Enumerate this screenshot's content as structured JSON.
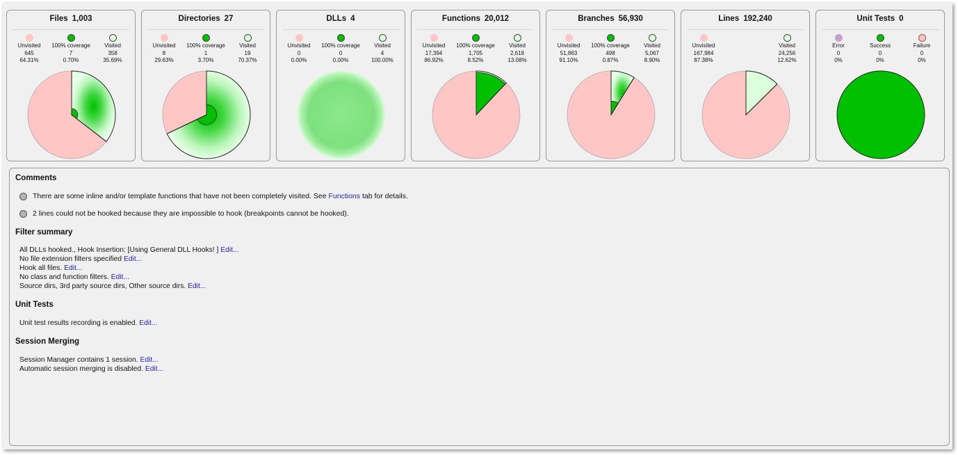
{
  "colors": {
    "unvisited": "#ffc6c6",
    "full": "#00c000",
    "visited": "#dcffdc",
    "error": "#c8a0d0",
    "link": "#2020c8"
  },
  "cards": [
    {
      "title": "Files",
      "count": "1,003",
      "legend": [
        {
          "label": "Unvisited",
          "count": "645",
          "pct": "64.31%",
          "color": "#ffc6c6"
        },
        {
          "label": "100% coverage",
          "count": "7",
          "pct": "0.70%",
          "color": "#00c000"
        },
        {
          "label": "Visited",
          "count": "358",
          "pct": "35.69%",
          "color": "#dcffdc"
        }
      ],
      "pie": [
        0.6431,
        0.007,
        0.3569
      ]
    },
    {
      "title": "Directories",
      "count": "27",
      "legend": [
        {
          "label": "Unvisited",
          "count": "8",
          "pct": "29.63%",
          "color": "#ffc6c6"
        },
        {
          "label": "100% coverage",
          "count": "1",
          "pct": "3.70%",
          "color": "#00c000"
        },
        {
          "label": "Visited",
          "count": "19",
          "pct": "70.37%",
          "color": "#dcffdc"
        }
      ],
      "pie": [
        0.2963,
        0.037,
        0.7037
      ]
    },
    {
      "title": "DLLs",
      "count": "4",
      "legend": [
        {
          "label": "Unvisited",
          "count": "0",
          "pct": "0.00%",
          "color": "#ffc6c6"
        },
        {
          "label": "100% coverage",
          "count": "0",
          "pct": "0.00%",
          "color": "#00c000"
        },
        {
          "label": "Visited",
          "count": "4",
          "pct": "100.00%",
          "color": "#dcffdc"
        }
      ],
      "pie": [
        0,
        0,
        1
      ]
    },
    {
      "title": "Functions",
      "count": "20,012",
      "legend": [
        {
          "label": "Unvisited",
          "count": "17,394",
          "pct": "86.92%",
          "color": "#ffc6c6"
        },
        {
          "label": "100% coverage",
          "count": "1,705",
          "pct": "8.52%",
          "color": "#00c000"
        },
        {
          "label": "Visited",
          "count": "2,618",
          "pct": "13.08%",
          "color": "#dcffdc"
        }
      ],
      "pie": [
        0.8692,
        0.0852,
        0.1308
      ]
    },
    {
      "title": "Branches",
      "count": "56,930",
      "legend": [
        {
          "label": "Unvisited",
          "count": "51,863",
          "pct": "91.10%",
          "color": "#ffc6c6"
        },
        {
          "label": "100% coverage",
          "count": "498",
          "pct": "0.87%",
          "color": "#00c000"
        },
        {
          "label": "Visited",
          "count": "5,067",
          "pct": "8.90%",
          "color": "#dcffdc"
        }
      ],
      "pie": [
        0.911,
        0.0087,
        0.089
      ]
    },
    {
      "title": "Lines",
      "count": "192,240",
      "legend": [
        {
          "label": "Unvisited",
          "count": "167,984",
          "pct": "87.38%",
          "color": "#ffc6c6"
        },
        {
          "label": "Visited",
          "count": "24,256",
          "pct": "12.62%",
          "color": "#dcffdc"
        }
      ],
      "pie": [
        0.8738,
        0,
        0.1262
      ]
    },
    {
      "title": "Unit Tests",
      "count": "0",
      "legend": [
        {
          "label": "Error",
          "count": "0",
          "pct": "0%",
          "color": "#c8a0d0"
        },
        {
          "label": "Success",
          "count": "0",
          "pct": "0%",
          "color": "#00c000"
        },
        {
          "label": "Failure",
          "count": "0",
          "pct": "0%",
          "color": "#ffc6c6"
        }
      ],
      "pie": "full-success"
    }
  ],
  "comments": {
    "heading": "Comments",
    "c1_pre": "There are some inline and/or template functions that have not been completely visited. See ",
    "c1_link": "Functions",
    "c1_post": " tab for details.",
    "c2": "2 lines could not be hooked because they are impossible to hook (breakpoints cannot be hooked)."
  },
  "filter": {
    "heading": "Filter summary",
    "lines": [
      {
        "text": "All DLLs hooked., Hook Insertion: [Using General DLL Hooks! ]",
        "link": "Edit..."
      },
      {
        "text": "No file extension filters specified",
        "link": "Edit..."
      },
      {
        "text": "Hook all files.",
        "link": "Edit..."
      },
      {
        "text": "No class and function filters.",
        "link": "Edit..."
      },
      {
        "text": "Source dirs, 3rd party source dirs, Other source dirs. ",
        "link": "Edit..."
      }
    ]
  },
  "unit_tests": {
    "heading": "Unit Tests",
    "lines": [
      {
        "text": "Unit test results recording is enabled.",
        "link": "Edit..."
      }
    ]
  },
  "session": {
    "heading": "Session Merging",
    "lines": [
      {
        "text": "Session Manager contains 1 session.",
        "link": "Edit..."
      },
      {
        "text": "Automatic session merging is disabled.",
        "link": "Edit..."
      }
    ]
  }
}
